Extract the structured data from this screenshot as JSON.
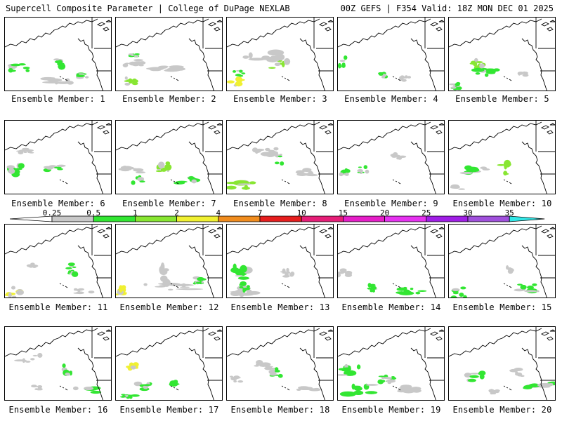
{
  "header": {
    "left_title": "Supercell Composite Parameter | College of DuPage NEXLAB",
    "right_title": "00Z GEFS | F354 Valid: 18Z MON DEC 01 2025"
  },
  "colorbar": {
    "labels": [
      "0.25",
      "0.5",
      "1",
      "2",
      "4",
      "7",
      "10",
      "15",
      "20",
      "25",
      "30",
      "35"
    ],
    "colors": [
      "#c8c8c8",
      "#32e632",
      "#88e632",
      "#f0f032",
      "#f08c1e",
      "#e61e1e",
      "#e61e78",
      "#e61ec8",
      "#e632f0",
      "#a01ee6",
      "#a050dc",
      "#32e6e6"
    ]
  },
  "members": [
    {
      "label": "Ensemble Member: 1"
    },
    {
      "label": "Ensemble Member: 2"
    },
    {
      "label": "Ensemble Member: 3"
    },
    {
      "label": "Ensemble Member: 4"
    },
    {
      "label": "Ensemble Member: 5"
    },
    {
      "label": "Ensemble Member: 6"
    },
    {
      "label": "Ensemble Member: 7"
    },
    {
      "label": "Ensemble Member: 8"
    },
    {
      "label": "Ensemble Member: 9"
    },
    {
      "label": "Ensemble Member: 10"
    },
    {
      "label": "Ensemble Member: 11"
    },
    {
      "label": "Ensemble Member: 12"
    },
    {
      "label": "Ensemble Member: 13"
    },
    {
      "label": "Ensemble Member: 14"
    },
    {
      "label": "Ensemble Member: 15"
    },
    {
      "label": "Ensemble Member: 16"
    },
    {
      "label": "Ensemble Member: 17"
    },
    {
      "label": "Ensemble Member: 18"
    },
    {
      "label": "Ensemble Member: 19"
    },
    {
      "label": "Ensemble Member: 20"
    }
  ]
}
